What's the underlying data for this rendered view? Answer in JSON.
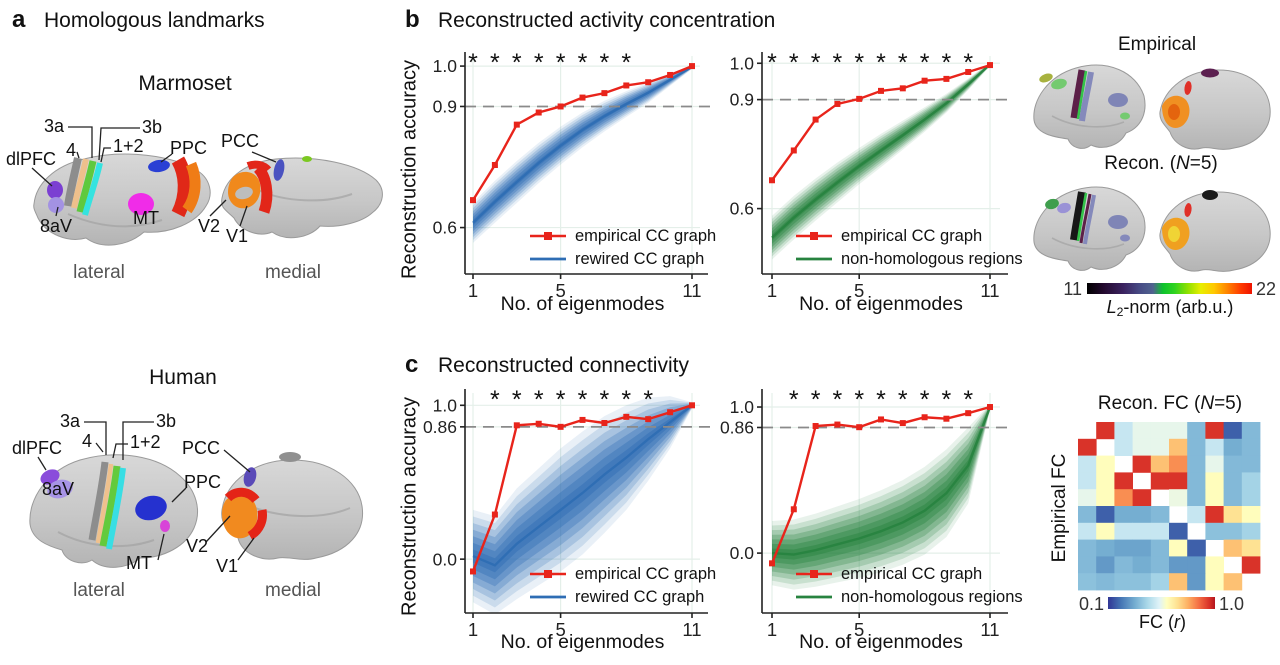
{
  "colors": {
    "empirical_line": "#e8241b",
    "rewired_band": "#2e6db4",
    "nonhomologous_band": "#27833f",
    "dashed_line": "#8a8a8a",
    "axis": "#222222",
    "grid": "#e4efe9"
  },
  "panel_a": {
    "label": "a",
    "title": "Homologous landmarks",
    "marmoset_title": "Marmoset",
    "human_title": "Human",
    "view_lateral": "lateral",
    "view_medial": "medial",
    "regions": {
      "r3a": "3a",
      "r3b": "3b",
      "r4": "4",
      "r12": "1+2",
      "dlpfc": "dlPFC",
      "r8av": "8aV",
      "mt": "MT",
      "ppc": "PPC",
      "pcc": "PCC",
      "v2": "V2",
      "v1": "V1"
    }
  },
  "panel_b": {
    "label": "b",
    "title": "Reconstructed activity concentration",
    "empirical_title": "Empirical",
    "recon_prefix": "Recon. (",
    "recon_n": "N",
    "recon_suffix": "=5)",
    "colorbar": {
      "min": "11",
      "max": "22",
      "label_l": "L",
      "label_sub": "2",
      "label_rest": "-norm (arb.u.)"
    }
  },
  "panel_c": {
    "label": "c",
    "title": "Reconstructed connectivity",
    "fc_prefix": "Recon. FC (",
    "fc_n": "N",
    "fc_suffix": "=5)",
    "fc_ylabel": "Empirical FC",
    "fc_colorbar": {
      "min": "0.1",
      "max": "1.0",
      "label_pre": "FC (",
      "label_r": "r",
      "label_post": ")"
    }
  },
  "chart_data": [
    {
      "id": "b_left",
      "type": "line",
      "x": [
        1,
        2,
        3,
        4,
        5,
        6,
        7,
        8,
        9,
        10,
        11
      ],
      "xlabel": "No. of eigenmodes",
      "ylabel": "Reconstruction accuracy",
      "xticks": [
        1,
        5,
        11
      ],
      "xtick_labels": [
        "1",
        "5",
        "11"
      ],
      "ytick_values": [
        0.6,
        0.9,
        1.0
      ],
      "ytick_labels": [
        "0.6",
        "0.9",
        "1.0"
      ],
      "ylim": [
        0.485,
        1.025
      ],
      "dashed_y": 0.9,
      "significance_x": [
        1,
        2,
        3,
        4,
        5,
        6,
        7,
        8
      ],
      "series": [
        {
          "name": "empirical CC graph",
          "color": "#e8241b",
          "marker": "square",
          "values": [
            0.668,
            0.755,
            0.855,
            0.885,
            0.9,
            0.922,
            0.933,
            0.952,
            0.96,
            0.978,
            1.0
          ]
        },
        {
          "name": "rewired CC graph",
          "color": "#2e6db4",
          "type": "band",
          "center": [
            0.612,
            0.664,
            0.713,
            0.76,
            0.803,
            0.842,
            0.876,
            0.906,
            0.934,
            0.966,
            0.998
          ],
          "halfwidth": [
            0.05,
            0.052,
            0.052,
            0.05,
            0.047,
            0.043,
            0.038,
            0.032,
            0.025,
            0.015,
            0.005
          ]
        }
      ]
    },
    {
      "id": "b_right",
      "type": "line",
      "x": [
        1,
        2,
        3,
        4,
        5,
        6,
        7,
        8,
        9,
        10,
        11
      ],
      "xlabel": "No. of eigenmodes",
      "ylabel": "",
      "xticks": [
        1,
        5,
        11
      ],
      "xtick_labels": [
        "1",
        "5",
        "11"
      ],
      "ytick_values": [
        0.6,
        0.9,
        1.0
      ],
      "ytick_labels": [
        "0.6",
        "0.9",
        "1.0"
      ],
      "ylim": [
        0.42,
        1.02
      ],
      "dashed_y": 0.9,
      "significance_x": [
        1,
        2,
        3,
        4,
        5,
        6,
        7,
        8,
        9,
        10
      ],
      "series": [
        {
          "name": "empirical CC graph",
          "color": "#e8241b",
          "marker": "square",
          "values": [
            0.678,
            0.76,
            0.845,
            0.888,
            0.902,
            0.924,
            0.931,
            0.952,
            0.957,
            0.976,
            0.995
          ]
        },
        {
          "name": "non-homologous regions",
          "color": "#27833f",
          "type": "band",
          "center": [
            0.52,
            0.575,
            0.625,
            0.672,
            0.717,
            0.76,
            0.802,
            0.845,
            0.89,
            0.942,
            0.997
          ],
          "halfwidth": [
            0.06,
            0.06,
            0.058,
            0.055,
            0.05,
            0.046,
            0.04,
            0.034,
            0.026,
            0.016,
            0.005
          ]
        }
      ]
    },
    {
      "id": "c_left",
      "type": "line",
      "x": [
        1,
        2,
        3,
        4,
        5,
        6,
        7,
        8,
        9,
        10,
        11
      ],
      "xlabel": "No. of eigenmodes",
      "ylabel": "Reconstruction accuracy",
      "xticks": [
        1,
        5,
        11
      ],
      "xtick_labels": [
        "1",
        "5",
        "11"
      ],
      "ytick_values": [
        0.0,
        0.86,
        1.0
      ],
      "ytick_labels": [
        "0.0",
        "0.86",
        "1.0"
      ],
      "ylim": [
        -0.35,
        1.08
      ],
      "dashed_y": 0.86,
      "significance_x": [
        2,
        3,
        4,
        5,
        6,
        7,
        8,
        9
      ],
      "series": [
        {
          "name": "empirical CC graph",
          "color": "#e8241b",
          "marker": "square",
          "values": [
            -0.08,
            0.29,
            0.87,
            0.88,
            0.86,
            0.905,
            0.885,
            0.925,
            0.91,
            0.955,
            1.0
          ]
        },
        {
          "name": "rewired CC graph",
          "color": "#2e6db4",
          "type": "band",
          "center": [
            0.02,
            -0.04,
            0.1,
            0.21,
            0.32,
            0.43,
            0.55,
            0.66,
            0.78,
            0.89,
            1.0
          ],
          "halfwidth": [
            0.3,
            0.32,
            0.36,
            0.38,
            0.4,
            0.4,
            0.38,
            0.34,
            0.27,
            0.17,
            0.02
          ]
        }
      ]
    },
    {
      "id": "c_right",
      "type": "line",
      "x": [
        1,
        2,
        3,
        4,
        5,
        6,
        7,
        8,
        9,
        10,
        11
      ],
      "xlabel": "No. of eigenmodes",
      "ylabel": "",
      "xticks": [
        1,
        5,
        11
      ],
      "xtick_labels": [
        "1",
        "5",
        "11"
      ],
      "ytick_values": [
        0.0,
        0.86,
        1.0
      ],
      "ytick_labels": [
        "0.0",
        "0.86",
        "1.0"
      ],
      "ylim": [
        -0.41,
        1.096
      ],
      "dashed_y": 0.86,
      "significance_x": [
        2,
        3,
        4,
        5,
        6,
        7,
        8,
        9,
        10
      ],
      "series": [
        {
          "name": "empirical CC graph",
          "color": "#e8241b",
          "marker": "square",
          "values": [
            -0.07,
            0.3,
            0.87,
            0.88,
            0.862,
            0.915,
            0.89,
            0.93,
            0.92,
            0.958,
            1.0
          ]
        },
        {
          "name": "non-homologous regions",
          "color": "#27833f",
          "type": "band",
          "center": [
            0.0,
            -0.01,
            0.02,
            0.06,
            0.1,
            0.15,
            0.21,
            0.29,
            0.41,
            0.6,
            1.0
          ],
          "halfwidth": [
            0.22,
            0.24,
            0.25,
            0.26,
            0.27,
            0.28,
            0.29,
            0.3,
            0.3,
            0.26,
            0.02
          ]
        }
      ]
    },
    {
      "id": "fc_matrix",
      "type": "heatmap",
      "title": "Recon. FC (N=5)",
      "row_label": "Empirical FC",
      "upper_triangle": "Recon. FC",
      "lower_triangle": "Empirical FC",
      "colormap": "RdYlBu_r",
      "domain": [
        0.1,
        1.0
      ],
      "values": [
        [
          null,
          0.95,
          0.47,
          0.54,
          0.54,
          0.54,
          0.33,
          0.95,
          0.16,
          0.33
        ],
        [
          0.95,
          null,
          0.47,
          0.54,
          0.54,
          0.74,
          0.33,
          0.47,
          0.3,
          0.33
        ],
        [
          0.47,
          0.6,
          null,
          0.95,
          0.74,
          0.82,
          0.33,
          0.54,
          0.33,
          0.33
        ],
        [
          0.47,
          0.6,
          0.95,
          null,
          0.95,
          0.95,
          0.33,
          0.6,
          0.33,
          0.4
        ],
        [
          0.54,
          0.6,
          0.82,
          0.95,
          null,
          0.55,
          0.33,
          0.6,
          0.33,
          0.4
        ],
        [
          0.33,
          0.16,
          0.3,
          0.3,
          0.33,
          null,
          0.47,
          0.95,
          0.68,
          0.6
        ],
        [
          0.47,
          0.6,
          0.47,
          0.47,
          0.47,
          0.16,
          null,
          0.35,
          0.35,
          0.4
        ],
        [
          0.33,
          0.3,
          0.28,
          0.28,
          0.33,
          0.6,
          0.16,
          null,
          0.74,
          0.68
        ],
        [
          0.33,
          0.26,
          0.33,
          0.3,
          0.33,
          0.26,
          0.26,
          0.6,
          null,
          0.95
        ],
        [
          0.35,
          0.33,
          0.35,
          0.35,
          0.4,
          0.74,
          0.26,
          0.6,
          0.74,
          null
        ]
      ]
    }
  ]
}
